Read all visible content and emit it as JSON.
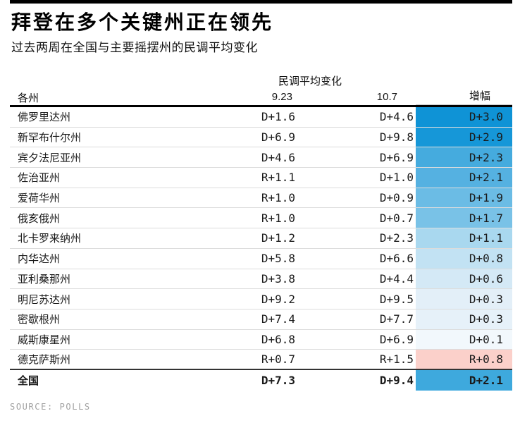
{
  "header": {
    "title": "拜登在多个关键州正在领先",
    "subtitle": "过去两周在全国与主要摇摆州的民调平均变化"
  },
  "table": {
    "group_header": "民调平均变化",
    "columns": {
      "state": "各州",
      "date1": "9.23",
      "date2": "10.7",
      "change": "增幅"
    },
    "rows": [
      {
        "state": "佛罗里达州",
        "d1": "D+1.6",
        "d2": "D+4.6",
        "change": "D+3.0",
        "color": "#0f93d6"
      },
      {
        "state": "新罕布什尔州",
        "d1": "D+6.9",
        "d2": "D+9.8",
        "change": "D+2.9",
        "color": "#1697d8"
      },
      {
        "state": "宾夕法尼亚州",
        "d1": "D+4.6",
        "d2": "D+6.9",
        "change": "D+2.3",
        "color": "#45abde"
      },
      {
        "state": "佐治亚州",
        "d1": "R+1.1",
        "d2": "D+1.0",
        "change": "D+2.1",
        "color": "#55b1e1"
      },
      {
        "state": "爱荷华州",
        "d1": "R+1.0",
        "d2": "D+0.9",
        "change": "D+1.9",
        "color": "#6bbce5"
      },
      {
        "state": "俄亥俄州",
        "d1": "R+1.0",
        "d2": "D+0.7",
        "change": "D+1.7",
        "color": "#79c2e7"
      },
      {
        "state": "北卡罗来纳州",
        "d1": "D+1.2",
        "d2": "D+2.3",
        "change": "D+1.1",
        "color": "#a9d8ef"
      },
      {
        "state": "内华达州",
        "d1": "D+5.8",
        "d2": "D+6.6",
        "change": "D+0.8",
        "color": "#c2e2f3"
      },
      {
        "state": "亚利桑那州",
        "d1": "D+3.8",
        "d2": "D+4.4",
        "change": "D+0.6",
        "color": "#d4e9f6"
      },
      {
        "state": "明尼苏达州",
        "d1": "D+9.2",
        "d2": "D+9.5",
        "change": "D+0.3",
        "color": "#e3eff8"
      },
      {
        "state": "密歇根州",
        "d1": "D+7.4",
        "d2": "D+7.7",
        "change": "D+0.3",
        "color": "#e6f1f9"
      },
      {
        "state": "威斯康星州",
        "d1": "D+6.8",
        "d2": "D+6.9",
        "change": "D+0.1",
        "color": "#f2f8fc"
      },
      {
        "state": "德克萨斯州",
        "d1": "R+0.7",
        "d2": "R+1.5",
        "change": "R+0.8",
        "color": "#fbd0ca",
        "heavy_divider": true
      },
      {
        "state": "全国",
        "d1": "D+7.3",
        "d2": "D+9.4",
        "change": "D+2.1",
        "color": "#3ea9dd",
        "bold": true
      }
    ]
  },
  "footer": {
    "source": "SOURCE: POLLS"
  },
  "colors": {
    "top_bar": "#000000",
    "header_rule": "#000000",
    "row_divider": "#dcdcdc",
    "national_divider": "#333333",
    "democrat_gain_max": "#0f93d6",
    "republican_gain": "#fbd0ca"
  },
  "chart_data": {
    "type": "table",
    "title": "拜登在多个关键州正在领先",
    "subtitle": "过去两周在全国与主要摇摆州的民调平均变化",
    "column_group_label": "民调平均变化",
    "columns": [
      "各州",
      "9.23",
      "10.7",
      "增幅"
    ],
    "rows": [
      [
        "佛罗里达州",
        "D+1.6",
        "D+4.6",
        "D+3.0"
      ],
      [
        "新罕布什尔州",
        "D+6.9",
        "D+9.8",
        "D+2.9"
      ],
      [
        "宾夕法尼亚州",
        "D+4.6",
        "D+6.9",
        "D+2.3"
      ],
      [
        "佐治亚州",
        "R+1.1",
        "D+1.0",
        "D+2.1"
      ],
      [
        "爱荷华州",
        "R+1.0",
        "D+0.9",
        "D+1.9"
      ],
      [
        "俄亥俄州",
        "R+1.0",
        "D+0.7",
        "D+1.7"
      ],
      [
        "北卡罗来纳州",
        "D+1.2",
        "D+2.3",
        "D+1.1"
      ],
      [
        "内华达州",
        "D+5.8",
        "D+6.6",
        "D+0.8"
      ],
      [
        "亚利桑那州",
        "D+3.8",
        "D+4.4",
        "D+0.6"
      ],
      [
        "明尼苏达州",
        "D+9.2",
        "D+9.5",
        "D+0.3"
      ],
      [
        "密歇根州",
        "D+7.4",
        "D+7.7",
        "D+0.3"
      ],
      [
        "威斯康星州",
        "D+6.8",
        "D+6.9",
        "D+0.1"
      ],
      [
        "德克萨斯州",
        "R+0.7",
        "R+1.5",
        "R+0.8"
      ],
      [
        "全国",
        "D+7.3",
        "D+9.4",
        "D+2.1"
      ]
    ],
    "shading": "增幅 cells shaded blue gradient for Democratic gains (darker = larger), pink for Republican gain",
    "source": "SOURCE: POLLS"
  }
}
